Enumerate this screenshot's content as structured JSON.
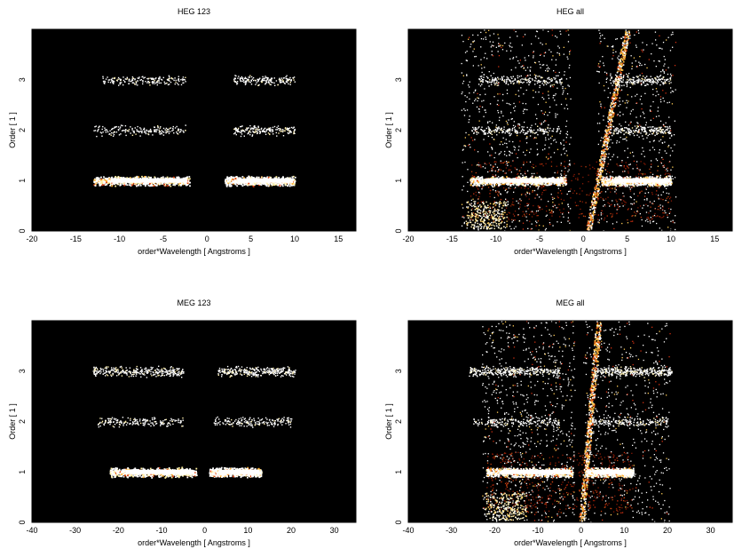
{
  "figure": {
    "panels": [
      {
        "id": "heg-123",
        "title": "HEG 123",
        "xlabel": "order*Wavelength [ Angstroms ]",
        "ylabel": "Order [ 1 ]",
        "xlim": [
          -20,
          17
        ],
        "ylim": [
          0,
          4
        ],
        "xticks": [
          -20,
          -15,
          -10,
          -5,
          0,
          5,
          10,
          15
        ],
        "yticks": [
          0,
          1,
          2,
          3
        ]
      },
      {
        "id": "heg-all",
        "title": "HEG all",
        "xlabel": "order*Wavelength [ Angstroms ]",
        "ylabel": "Order [ 1 ]",
        "xlim": [
          -20,
          17
        ],
        "ylim": [
          0,
          4
        ],
        "xticks": [
          -20,
          -15,
          -10,
          -5,
          0,
          5,
          10,
          15
        ],
        "yticks": [
          0,
          1,
          2,
          3
        ]
      },
      {
        "id": "meg-123",
        "title": "MEG 123",
        "xlabel": "order*Wavelength [ Angstroms ]",
        "ylabel": "Order [ 1 ]",
        "xlim": [
          -40,
          35
        ],
        "ylim": [
          0,
          4
        ],
        "xticks": [
          -40,
          -30,
          -20,
          -10,
          0,
          10,
          20,
          30
        ],
        "yticks": [
          0,
          1,
          2,
          3
        ]
      },
      {
        "id": "meg-all",
        "title": "MEG all",
        "xlabel": "order*Wavelength [ Angstroms ]",
        "ylabel": "Order [ 1 ]",
        "xlim": [
          -40,
          35
        ],
        "ylim": [
          0,
          4
        ],
        "xticks": [
          -40,
          -30,
          -20,
          -10,
          0,
          10,
          20,
          30
        ],
        "yticks": [
          0,
          1,
          2,
          3
        ]
      }
    ]
  },
  "chart_data": [
    {
      "type": "heatmap",
      "title": "HEG 123",
      "xlabel": "order*Wavelength [ Angstroms ]",
      "ylabel": "Order [ 1 ]",
      "xlim": [
        -20,
        17
      ],
      "ylim": [
        0,
        4
      ],
      "grid": false,
      "colormap": "black-red-yellow-white",
      "bands": [
        {
          "order": 1,
          "x_ranges": [
            [
              -13,
              -2
            ],
            [
              2,
              10
            ]
          ],
          "intensity": "high"
        },
        {
          "order": 2,
          "x_ranges": [
            [
              -13,
              -2.5
            ],
            [
              3,
              10
            ]
          ],
          "intensity": "low"
        },
        {
          "order": 3,
          "x_ranges": [
            [
              -12,
              -2.5
            ],
            [
              3,
              10
            ]
          ],
          "intensity": "low"
        }
      ]
    },
    {
      "type": "heatmap",
      "title": "HEG all",
      "xlabel": "order*Wavelength [ Angstroms ]",
      "ylabel": "Order [ 1 ]",
      "xlim": [
        -20,
        17
      ],
      "ylim": [
        0,
        4
      ],
      "grid": false,
      "colormap": "black-red-yellow-white",
      "bands": [
        {
          "order": 1,
          "x_ranges": [
            [
              -13,
              -2
            ],
            [
              2,
              10
            ]
          ],
          "intensity": "high"
        },
        {
          "order": 2,
          "x_ranges": [
            [
              -13,
              -2.5
            ],
            [
              3,
              10
            ]
          ],
          "intensity": "low"
        },
        {
          "order": 3,
          "x_ranges": [
            [
              -12,
              -2.5
            ],
            [
              3,
              10
            ]
          ],
          "intensity": "low"
        }
      ],
      "diagonal_streak": {
        "from": [
          0.5,
          0
        ],
        "to": [
          5,
          4
        ]
      }
    },
    {
      "type": "heatmap",
      "title": "MEG 123",
      "xlabel": "order*Wavelength [ Angstroms ]",
      "ylabel": "Order [ 1 ]",
      "xlim": [
        -40,
        35
      ],
      "ylim": [
        0,
        4
      ],
      "grid": false,
      "colormap": "black-red-yellow-white",
      "bands": [
        {
          "order": 1,
          "x_ranges": [
            [
              -22,
              -2
            ],
            [
              1,
              13
            ]
          ],
          "intensity": "high"
        },
        {
          "order": 2,
          "x_ranges": [
            [
              -25,
              -5
            ],
            [
              2,
              20
            ]
          ],
          "intensity": "low"
        },
        {
          "order": 3,
          "x_ranges": [
            [
              -26,
              -5
            ],
            [
              3,
              21
            ]
          ],
          "intensity": "medium"
        }
      ]
    },
    {
      "type": "heatmap",
      "title": "MEG all",
      "xlabel": "order*Wavelength [ Angstroms ]",
      "ylabel": "Order [ 1 ]",
      "xlim": [
        -40,
        35
      ],
      "ylim": [
        0,
        4
      ],
      "grid": false,
      "colormap": "black-red-yellow-white",
      "bands": [
        {
          "order": 1,
          "x_ranges": [
            [
              -22,
              -2
            ],
            [
              1,
              12
            ]
          ],
          "intensity": "high"
        },
        {
          "order": 2,
          "x_ranges": [
            [
              -25,
              -5
            ],
            [
              2,
              20
            ]
          ],
          "intensity": "low"
        },
        {
          "order": 3,
          "x_ranges": [
            [
              -26,
              -5
            ],
            [
              3,
              21
            ]
          ],
          "intensity": "medium"
        }
      ],
      "diagonal_streak": {
        "from": [
          0,
          0
        ],
        "to": [
          4,
          4
        ]
      }
    }
  ]
}
